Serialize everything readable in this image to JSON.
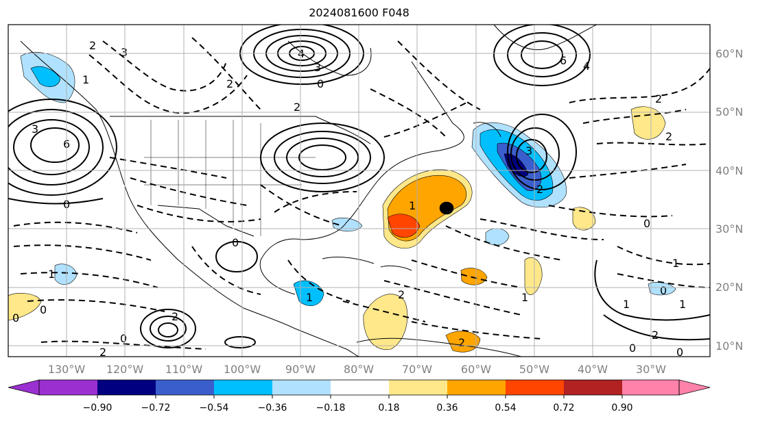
{
  "title": "2024081600 F048",
  "longitude_labels": [
    "130°W",
    "120°W",
    "110°W",
    "100°W",
    "90°W",
    "80°W",
    "70°W",
    "60°W",
    "50°W",
    "40°W",
    "30°W"
  ],
  "latitude_labels": [
    "60°N",
    "50°N",
    "40°N",
    "30°N",
    "20°N",
    "10°N"
  ],
  "colorbar": {
    "ticks": [
      "−0.90",
      "−0.72",
      "−0.54",
      "−0.36",
      "−0.18",
      "0.18",
      "0.36",
      "0.54",
      "0.72",
      "0.90"
    ],
    "colors": [
      "#9b30d0",
      "#000080",
      "#3a5fcd",
      "#00bfff",
      "#b0e2ff",
      "#ffffff",
      "#ffe88a",
      "#ffa500",
      "#ff4500",
      "#b22222",
      "#ff82ab"
    ]
  },
  "contour_labels": [
    "4",
    "3",
    "0",
    "2",
    "6",
    "3",
    "0",
    "2",
    "6",
    "4",
    "3",
    "2",
    "0",
    "1",
    "3",
    "2",
    "0",
    "2",
    "1",
    "0",
    "1",
    "2",
    "0",
    "2",
    "1",
    "0",
    "2",
    "1",
    "1",
    "2",
    "0",
    "1",
    "2",
    "0",
    "2",
    "1",
    "0"
  ]
}
